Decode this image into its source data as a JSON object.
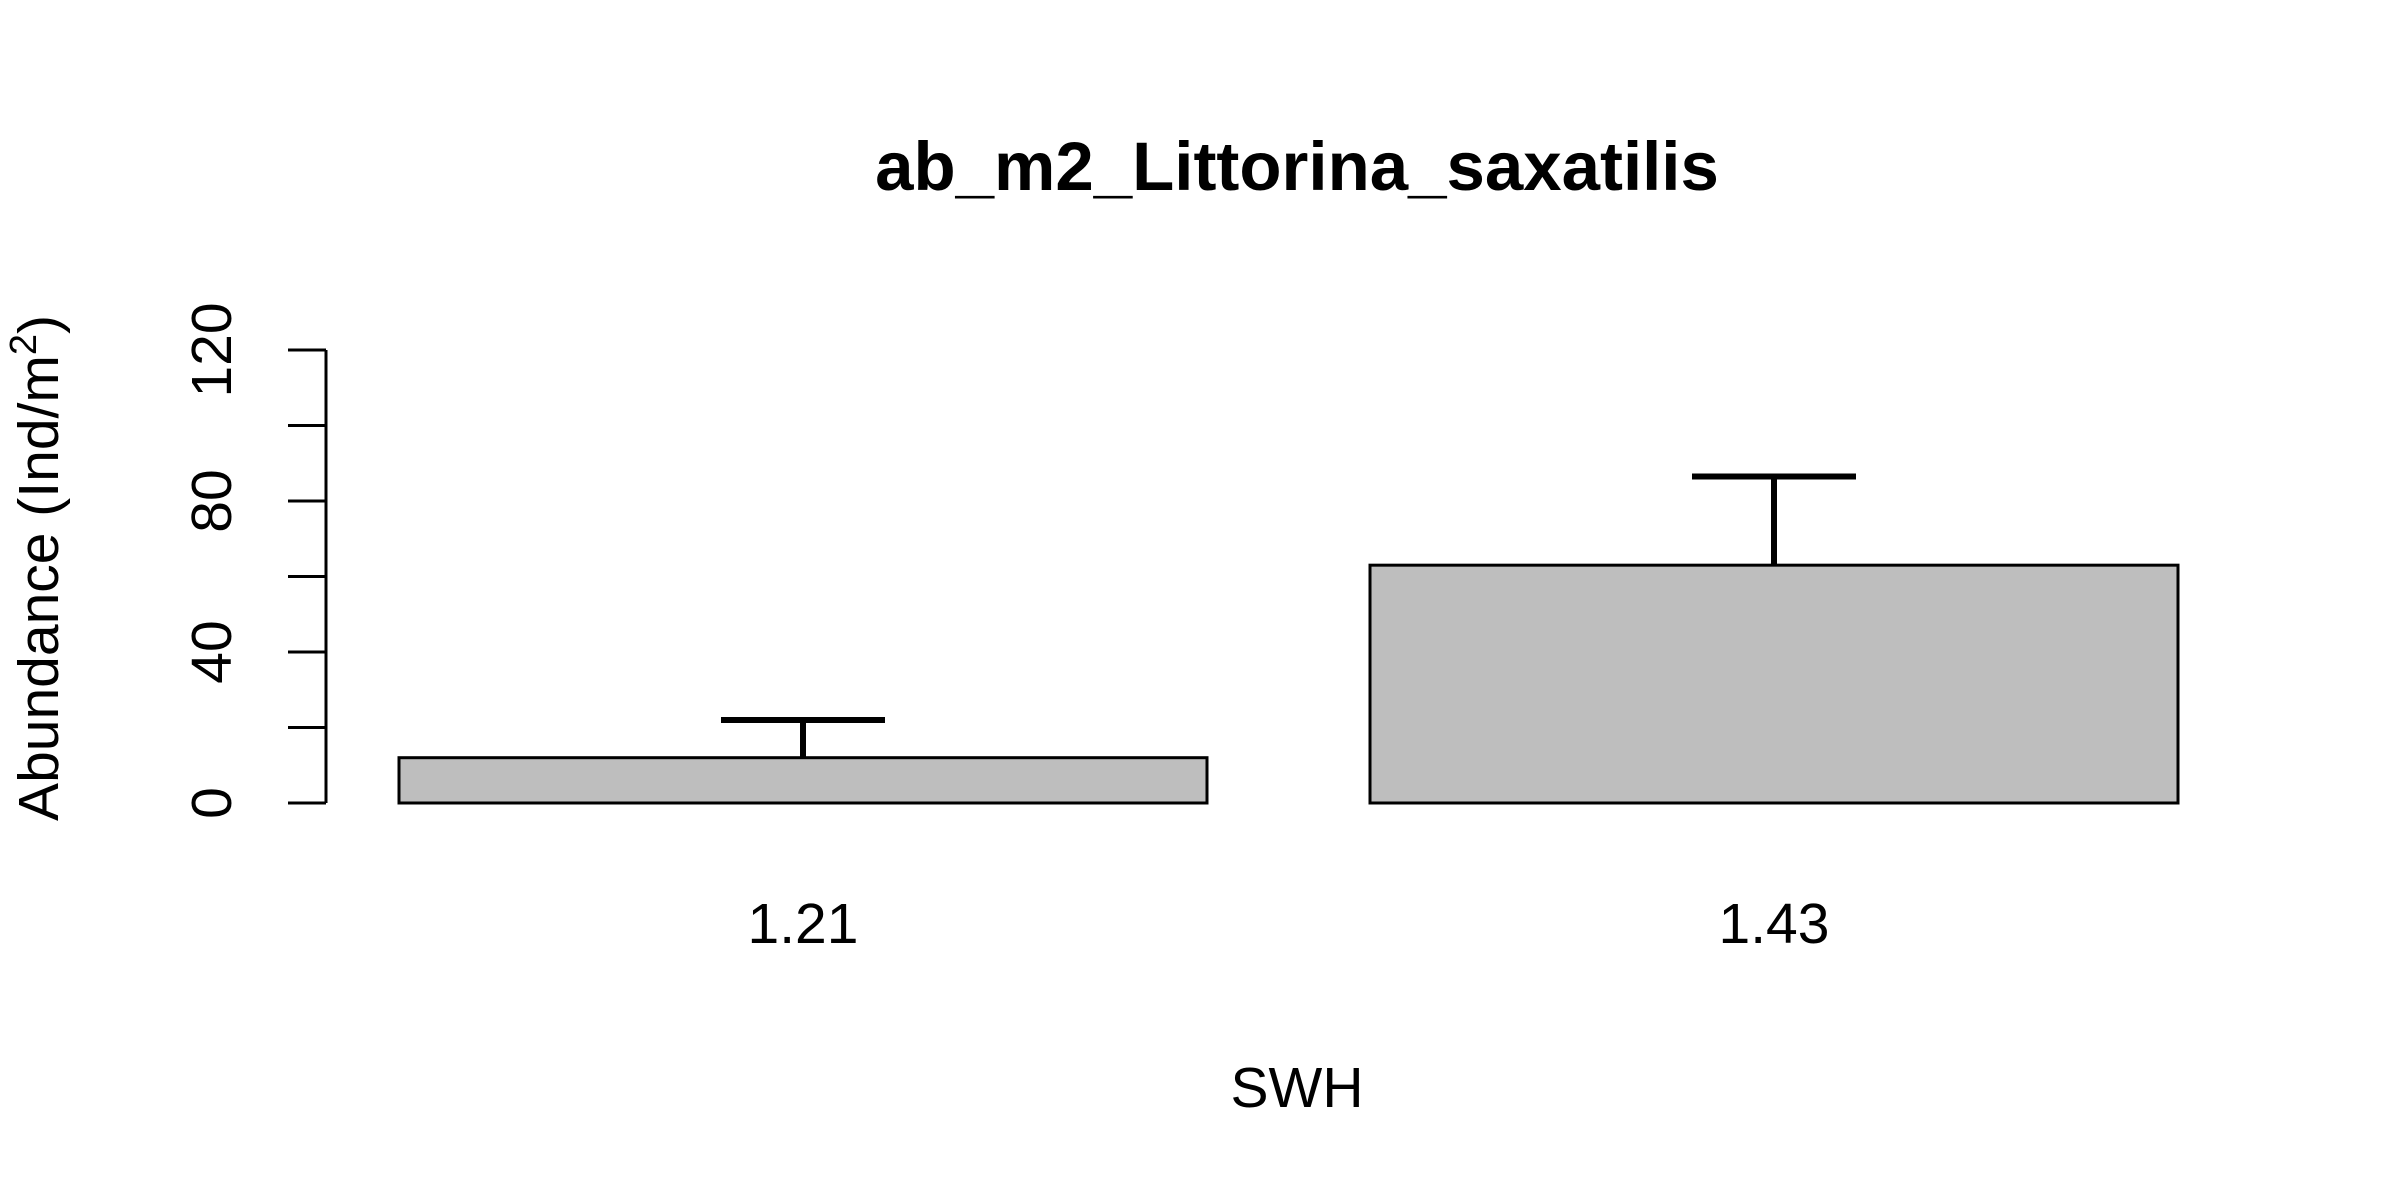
{
  "chart_data": {
    "type": "bar",
    "title": "ab_m2_Littorina_saxatilis",
    "xlabel": "SWH",
    "ylabel": {
      "main": "Abundance (Ind/m",
      "superscript": "2",
      "close": ")"
    },
    "categories": [
      "1.21",
      "1.43"
    ],
    "values": [
      12,
      63
    ],
    "error_upper": [
      22,
      86.5
    ],
    "ylim": [
      0,
      120
    ],
    "yticks": [
      0,
      40,
      80,
      120
    ],
    "grid": false,
    "legend": "none",
    "colors": {
      "bar_fill": "#bebebe",
      "bar_stroke": "#000000",
      "axis": "#000000",
      "text": "#000000",
      "background": "#ffffff"
    }
  }
}
